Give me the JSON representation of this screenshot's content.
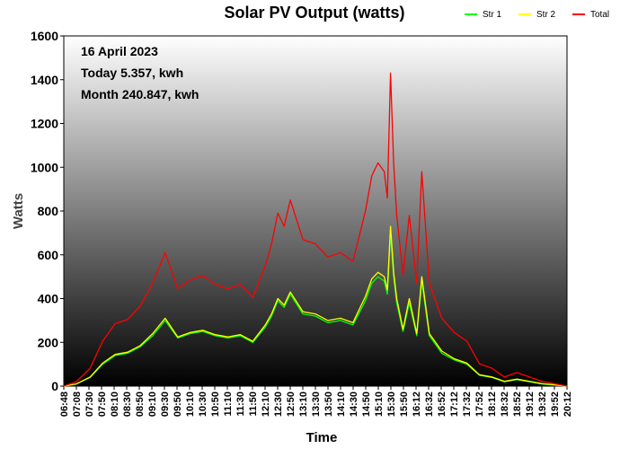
{
  "chart_data": {
    "type": "line",
    "title": "Solar PV Output (watts)",
    "xlabel": "Time",
    "ylabel": "Watts",
    "ylim": [
      0,
      1600
    ],
    "yticks": [
      0,
      200,
      400,
      600,
      800,
      1000,
      1200,
      1400,
      1600
    ],
    "xticks": [
      "06:48",
      "07:08",
      "07:30",
      "07:50",
      "08:10",
      "08:30",
      "08:50",
      "09:10",
      "09:30",
      "09:50",
      "10:10",
      "10:30",
      "10:50",
      "11:10",
      "11:30",
      "11:50",
      "12:10",
      "12:30",
      "12:50",
      "13:10",
      "13:30",
      "13:50",
      "14:10",
      "14:30",
      "14:50",
      "15:10",
      "15:30",
      "15:50",
      "16:12",
      "16:32",
      "16:52",
      "17:12",
      "17:32",
      "17:52",
      "18:12",
      "18:32",
      "18:52",
      "19:12",
      "19:32",
      "19:52",
      "20:12"
    ],
    "annotations": {
      "date": "16 April 2023",
      "today": "Today 5.357, kwh",
      "month": "Month 240.847, kwh"
    },
    "legend_position": "top-right",
    "grid": false,
    "x": [
      "06:48",
      "07:08",
      "07:30",
      "07:50",
      "08:10",
      "08:30",
      "08:50",
      "09:10",
      "09:30",
      "09:50",
      "10:10",
      "10:30",
      "10:50",
      "11:10",
      "11:30",
      "11:50",
      "12:10",
      "12:20",
      "12:30",
      "12:40",
      "12:50",
      "13:10",
      "13:30",
      "13:50",
      "14:10",
      "14:30",
      "14:50",
      "15:00",
      "15:10",
      "15:20",
      "15:25",
      "15:30",
      "15:35",
      "15:40",
      "15:50",
      "16:00",
      "16:12",
      "16:20",
      "16:32",
      "16:52",
      "17:12",
      "17:32",
      "17:52",
      "18:12",
      "18:32",
      "18:52",
      "19:12",
      "19:32",
      "19:52",
      "20:12"
    ],
    "series": [
      {
        "name": "Str 1",
        "color": "#00ff00",
        "values": [
          0,
          10,
          40,
          100,
          140,
          150,
          180,
          230,
          300,
          220,
          240,
          250,
          230,
          220,
          230,
          200,
          270,
          320,
          390,
          360,
          420,
          330,
          320,
          290,
          300,
          280,
          390,
          470,
          500,
          480,
          420,
          700,
          500,
          380,
          250,
          380,
          230,
          480,
          230,
          150,
          120,
          100,
          50,
          40,
          20,
          30,
          20,
          10,
          5,
          0
        ]
      },
      {
        "name": "Str 2",
        "color": "#ffff00",
        "values": [
          0,
          10,
          42,
          105,
          145,
          155,
          185,
          240,
          310,
          225,
          245,
          255,
          235,
          225,
          235,
          205,
          280,
          330,
          400,
          370,
          430,
          340,
          330,
          300,
          310,
          290,
          410,
          490,
          520,
          500,
          440,
          730,
          520,
          400,
          260,
          400,
          240,
          500,
          240,
          160,
          125,
          105,
          52,
          42,
          22,
          32,
          22,
          12,
          6,
          0
        ]
      },
      {
        "name": "Total",
        "color": "#ff0000",
        "values": [
          0,
          20,
          82,
          205,
          285,
          305,
          365,
          470,
          610,
          445,
          485,
          505,
          465,
          445,
          465,
          405,
          550,
          650,
          790,
          730,
          850,
          670,
          650,
          590,
          610,
          570,
          800,
          960,
          1020,
          980,
          860,
          1430,
          1020,
          780,
          510,
          780,
          470,
          980,
          470,
          310,
          245,
          205,
          102,
          82,
          42,
          62,
          42,
          22,
          11,
          0
        ]
      }
    ]
  }
}
